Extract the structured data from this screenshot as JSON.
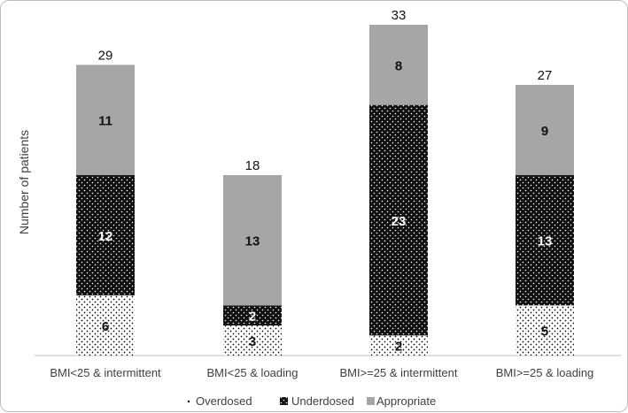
{
  "chart_data": {
    "type": "bar",
    "stacked": true,
    "categories": [
      "BMI<25 & intermittent",
      "BMI<25 & loading",
      "BMI>=25 & intermittent",
      "BMI>=25 & loading"
    ],
    "series": [
      {
        "name": "Overdosed",
        "values": [
          6,
          3,
          2,
          5
        ],
        "pattern": "white-dotted",
        "color": "#ffffff"
      },
      {
        "name": "Underdosed",
        "values": [
          12,
          2,
          23,
          13
        ],
        "pattern": "black-dotted",
        "color": "#111111"
      },
      {
        "name": "Appropriate",
        "values": [
          11,
          13,
          8,
          9
        ],
        "pattern": "solid",
        "color": "#a6a6a6"
      }
    ],
    "totals": [
      29,
      18,
      33,
      27
    ],
    "ylabel": "Number of patients",
    "xlabel": "",
    "ylim": [
      0,
      33
    ],
    "grid": false,
    "legend_position": "bottom"
  }
}
